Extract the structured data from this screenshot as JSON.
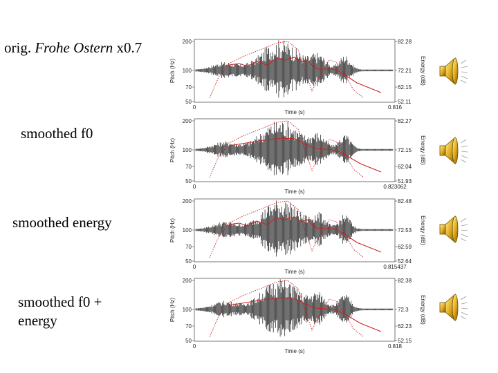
{
  "rows": [
    {
      "label_parts": [
        "orig. ",
        "Frohe Ostern",
        " x0.7"
      ],
      "pitch_ticks": [
        "200",
        "100",
        "70",
        "50"
      ],
      "energy_ticks": [
        "82.28",
        "72.21",
        "62.15",
        "52.11"
      ],
      "time_start": "0",
      "time_end": "0.816",
      "time_label": "Time (s)",
      "pitch_label": "Pitch (Hz)",
      "energy_label": "Energy (dB)"
    },
    {
      "label": "smoothed f0",
      "pitch_ticks": [
        "200",
        "100",
        "70",
        "50"
      ],
      "energy_ticks": [
        "82.27",
        "72.15",
        "62.04",
        "51.93"
      ],
      "time_start": "0",
      "time_end": "0.823062",
      "time_label": "Time (s)",
      "pitch_label": "Pitch (Hz)",
      "energy_label": "Energy (dB)"
    },
    {
      "label": "smoothed energy",
      "pitch_ticks": [
        "200",
        "100",
        "70",
        "50"
      ],
      "energy_ticks": [
        "82.48",
        "72.53",
        "62.59",
        "52.64"
      ],
      "time_start": "0",
      "time_end": "0.815437",
      "time_label": "Time (s)",
      "pitch_label": "Pitch (Hz)",
      "energy_label": "Energy (dB)"
    },
    {
      "label_lines": [
        "smoothed f0 +",
        "energy"
      ],
      "pitch_ticks": [
        "200",
        "100",
        "70",
        "50"
      ],
      "energy_ticks": [
        "82.38",
        "72.3",
        "62.23",
        "52.15"
      ],
      "time_start": "0",
      "time_end": "0.818",
      "time_label": "Time (s)",
      "pitch_label": "Pitch (Hz)",
      "energy_label": "Energy (dB)"
    }
  ],
  "colors": {
    "waveform": "#111111",
    "contour": "#cc2020",
    "frame": "#555555"
  }
}
